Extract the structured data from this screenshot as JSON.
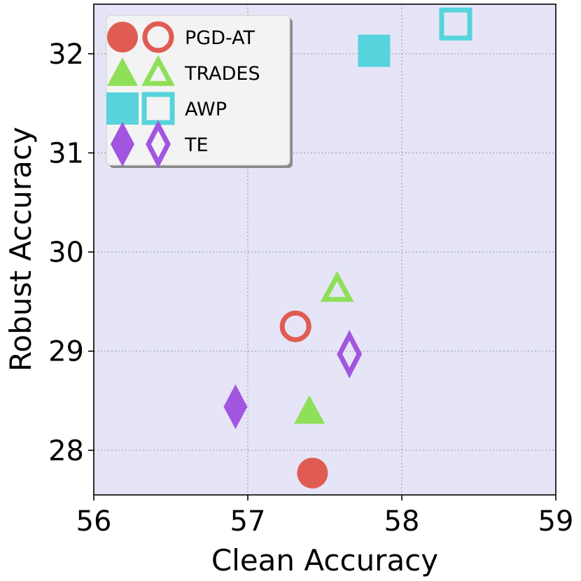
{
  "chart_data": {
    "type": "scatter",
    "title": "",
    "xlabel": "Clean Accuracy",
    "ylabel": "Robust Accuracy",
    "xlim": [
      56,
      59
    ],
    "ylim": [
      27.55,
      32.5
    ],
    "xticks": [
      56,
      57,
      58,
      59
    ],
    "yticks": [
      28,
      29,
      30,
      31,
      32
    ],
    "grid": true,
    "background": "#e5e5f7",
    "legend": "top-left",
    "series": [
      {
        "name": "PGD-AT",
        "color": "#e05c52",
        "marker": "circle",
        "points": [
          {
            "x": 57.42,
            "y": 27.77,
            "filled": true
          },
          {
            "x": 57.31,
            "y": 29.25,
            "filled": false
          }
        ]
      },
      {
        "name": "TRADES",
        "color": "#8fdf59",
        "marker": "triangle",
        "points": [
          {
            "x": 57.4,
            "y": 28.4,
            "filled": true
          },
          {
            "x": 57.58,
            "y": 29.63,
            "filled": false
          }
        ]
      },
      {
        "name": "AWP",
        "color": "#57d3dc",
        "marker": "square",
        "points": [
          {
            "x": 57.82,
            "y": 32.03,
            "filled": true
          },
          {
            "x": 58.35,
            "y": 32.3,
            "filled": false
          }
        ]
      },
      {
        "name": "TE",
        "color": "#a256e0",
        "marker": "diamond",
        "points": [
          {
            "x": 56.92,
            "y": 28.44,
            "filled": true
          },
          {
            "x": 57.66,
            "y": 28.97,
            "filled": false
          }
        ]
      }
    ]
  }
}
